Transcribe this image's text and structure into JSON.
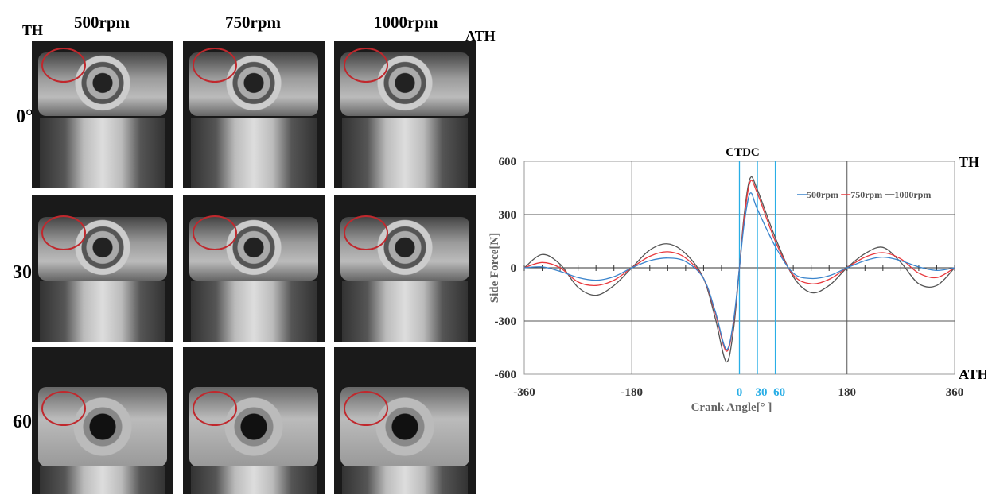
{
  "figure": {
    "left_label": "TH",
    "right_label": "ATH",
    "columns": [
      "500rpm",
      "750rpm",
      "1000rpm"
    ],
    "rows": [
      "0°",
      "30°",
      "60°"
    ]
  },
  "chart_data": {
    "type": "line",
    "title": "",
    "xlabel": "Crank Angle[° ]",
    "ylabel": "Side Force[N]",
    "xlim": [
      -360,
      360
    ],
    "ylim": [
      -600,
      600
    ],
    "xticks": [
      "-360",
      "-180",
      "180",
      "360"
    ],
    "yticks": [
      "600",
      "300",
      "0",
      "-300",
      "-600"
    ],
    "marker_lines": {
      "values": [
        0,
        30,
        60
      ],
      "labels": [
        "0",
        "30",
        "60"
      ],
      "color": "#29aee6"
    },
    "annotations": {
      "ctdc": "CTDC",
      "top": "TH",
      "bottom": "ATH"
    },
    "legend_position": "top-right",
    "x": [
      -360,
      -330,
      -300,
      -270,
      -240,
      -210,
      -180,
      -150,
      -120,
      -90,
      -60,
      -40,
      -22,
      -10,
      0,
      8,
      18,
      30,
      60,
      90,
      120,
      150,
      180,
      210,
      240,
      270,
      300,
      330,
      360
    ],
    "series": [
      {
        "name": "500rpm",
        "color": "#3a84cc",
        "values": [
          0,
          5,
          -20,
          -55,
          -70,
          -50,
          0,
          40,
          55,
          35,
          -60,
          -250,
          -460,
          -300,
          0,
          250,
          420,
          330,
          120,
          -30,
          -60,
          -45,
          0,
          40,
          60,
          40,
          5,
          -15,
          0
        ]
      },
      {
        "name": "750rpm",
        "color": "#e8383d",
        "values": [
          0,
          30,
          0,
          -80,
          -100,
          -70,
          0,
          65,
          90,
          55,
          -60,
          -260,
          -470,
          -310,
          0,
          280,
          485,
          420,
          150,
          -40,
          -90,
          -65,
          0,
          60,
          85,
          50,
          -30,
          -55,
          0
        ]
      },
      {
        "name": "1000rpm",
        "color": "#555555",
        "values": [
          0,
          75,
          20,
          -110,
          -155,
          -100,
          0,
          100,
          135,
          80,
          -60,
          -290,
          -530,
          -350,
          0,
          300,
          505,
          440,
          170,
          -50,
          -140,
          -100,
          0,
          80,
          115,
          30,
          -90,
          -100,
          0
        ]
      }
    ]
  }
}
